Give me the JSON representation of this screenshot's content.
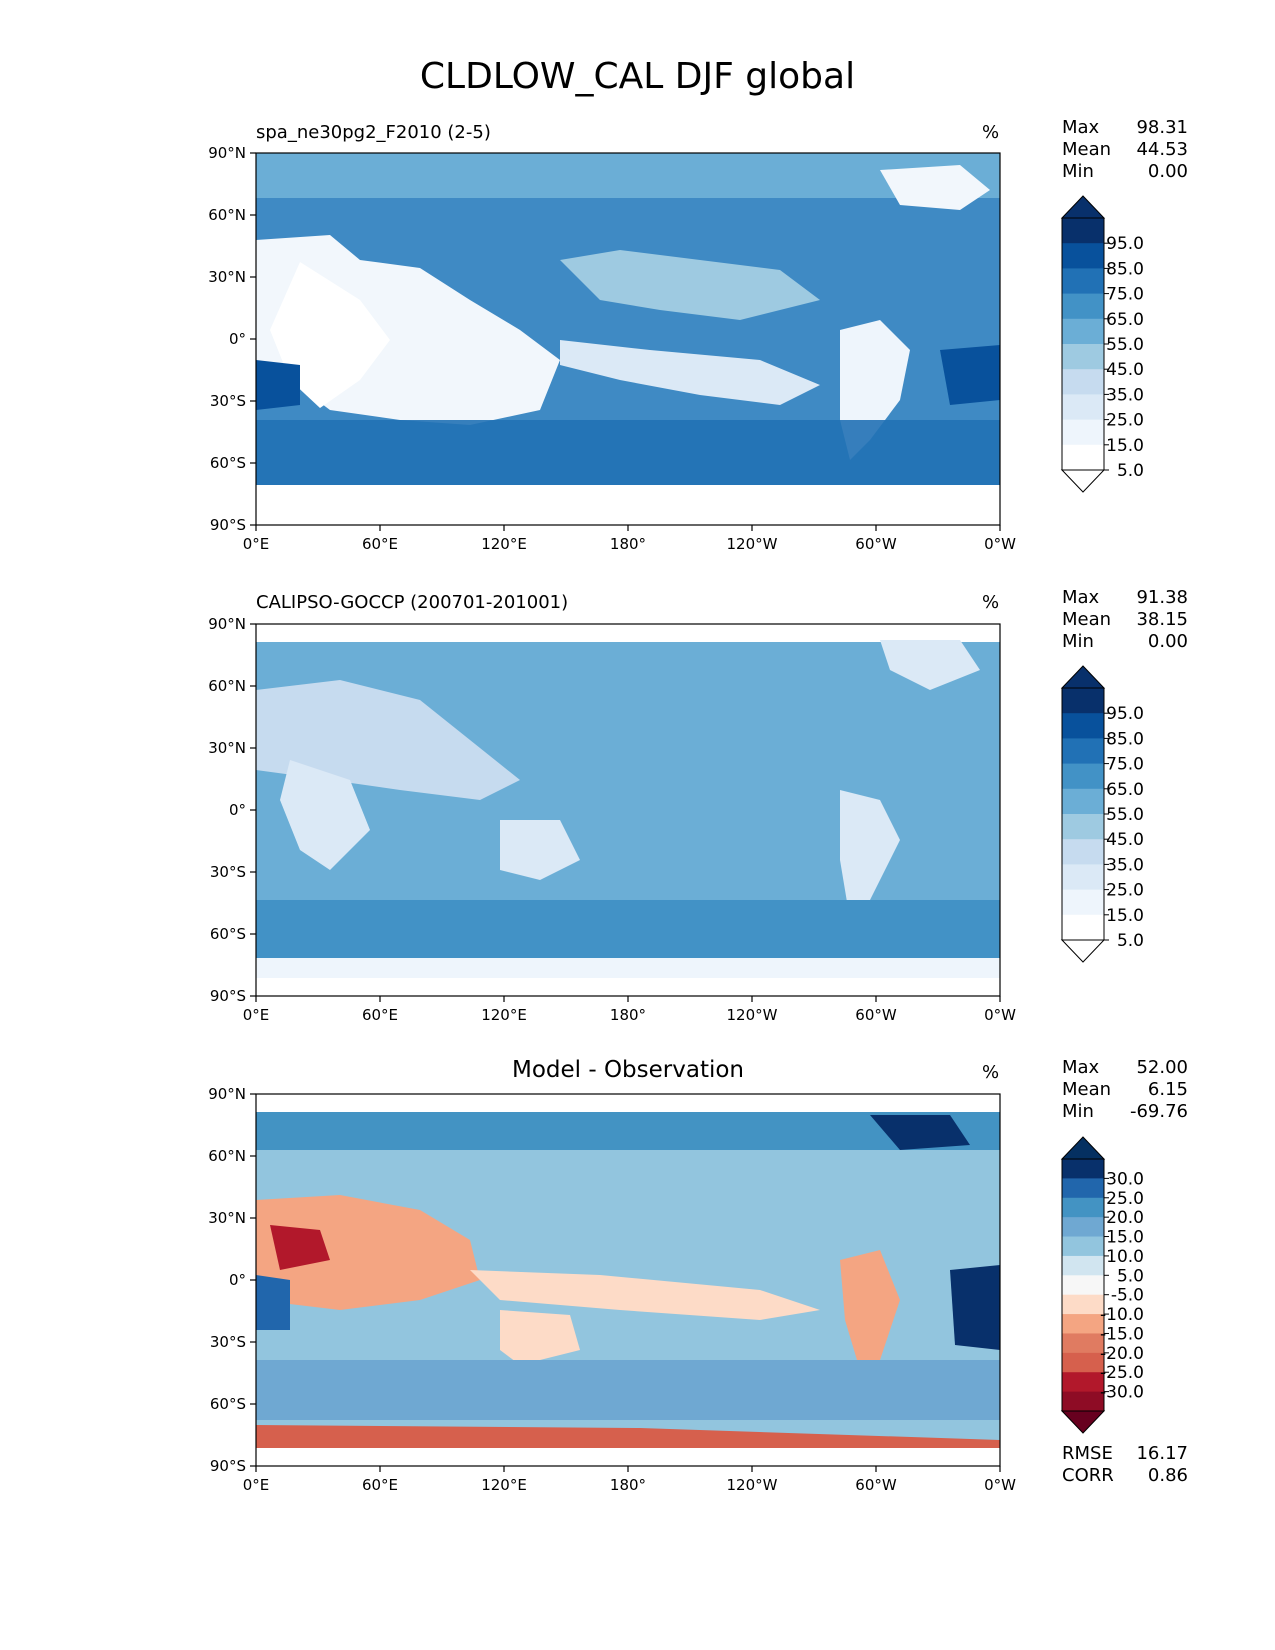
{
  "figure": {
    "title": "CLDLOW_CAL DJF global"
  },
  "panels": [
    {
      "id": "test",
      "title": "spa_ne30pg2_F2010 (2-5)",
      "title_style": "left",
      "units": "%",
      "stats": [
        {
          "label": "Max",
          "value": "98.31"
        },
        {
          "label": "Mean",
          "value": "44.53"
        },
        {
          "label": "Min",
          "value": "0.00"
        }
      ],
      "colorbar": {
        "levels": [
          "95.0",
          "85.0",
          "75.0",
          "65.0",
          "55.0",
          "45.0",
          "35.0",
          "25.0",
          "15.0",
          "5.0"
        ],
        "colors": [
          "#08306b",
          "#08519c",
          "#2171b5",
          "#4292c6",
          "#6baed6",
          "#9ecae1",
          "#c6dbef",
          "#dbe9f6",
          "#eef5fc",
          "#ffffff"
        ],
        "extend_colors": [
          "#08306b",
          "#ffffff"
        ]
      },
      "map": {
        "lat_ticks": [
          "90°N",
          "60°N",
          "30°N",
          "0°",
          "30°S",
          "60°S",
          "90°S"
        ],
        "lon_ticks": [
          "0°E",
          "60°E",
          "120°E",
          "180°",
          "120°W",
          "60°W",
          "0°W"
        ]
      },
      "extra_stats": []
    },
    {
      "id": "ref",
      "title": "CALIPSO-GOCCP (200701-201001)",
      "title_style": "left",
      "units": "%",
      "stats": [
        {
          "label": "Max",
          "value": "91.38"
        },
        {
          "label": "Mean",
          "value": "38.15"
        },
        {
          "label": "Min",
          "value": "0.00"
        }
      ],
      "colorbar": {
        "levels": [
          "95.0",
          "85.0",
          "75.0",
          "65.0",
          "55.0",
          "45.0",
          "35.0",
          "25.0",
          "15.0",
          "5.0"
        ],
        "colors": [
          "#08306b",
          "#08519c",
          "#2171b5",
          "#4292c6",
          "#6baed6",
          "#9ecae1",
          "#c6dbef",
          "#dbe9f6",
          "#eef5fc",
          "#ffffff"
        ],
        "extend_colors": [
          "#08306b",
          "#ffffff"
        ]
      },
      "map": {
        "lat_ticks": [
          "90°N",
          "60°N",
          "30°N",
          "0°",
          "30°S",
          "60°S",
          "90°S"
        ],
        "lon_ticks": [
          "0°E",
          "60°E",
          "120°E",
          "180°",
          "120°W",
          "60°W",
          "0°W"
        ]
      },
      "extra_stats": []
    },
    {
      "id": "diff",
      "title": "Model - Observation",
      "title_style": "center",
      "units": "%",
      "stats": [
        {
          "label": "Max",
          "value": "52.00"
        },
        {
          "label": "Mean",
          "value": "6.15"
        },
        {
          "label": "Min",
          "value": "-69.76"
        }
      ],
      "colorbar": {
        "levels": [
          "30.0",
          "25.0",
          "20.0",
          "15.0",
          "10.0",
          "5.0",
          "-5.0",
          "-10.0",
          "-15.0",
          "-20.0",
          "-25.0",
          "-30.0"
        ],
        "colors": [
          "#08306b",
          "#2166ac",
          "#4393c3",
          "#6fa8d2",
          "#92c5de",
          "#d1e5f0",
          "#f7f7f7",
          "#fddbc7",
          "#f4a582",
          "#e07b61",
          "#d6604d",
          "#b2182b",
          "#8e0c25"
        ],
        "extend_colors": [
          "#053061",
          "#67001f"
        ]
      },
      "map": {
        "lat_ticks": [
          "90°N",
          "60°N",
          "30°N",
          "0°",
          "30°S",
          "60°S",
          "90°S"
        ],
        "lon_ticks": [
          "0°E",
          "60°E",
          "120°E",
          "180°",
          "120°W",
          "60°W",
          "0°W"
        ]
      },
      "extra_stats": [
        {
          "label": "RMSE",
          "value": "16.17"
        },
        {
          "label": "CORR",
          "value": "0.86"
        }
      ]
    }
  ]
}
